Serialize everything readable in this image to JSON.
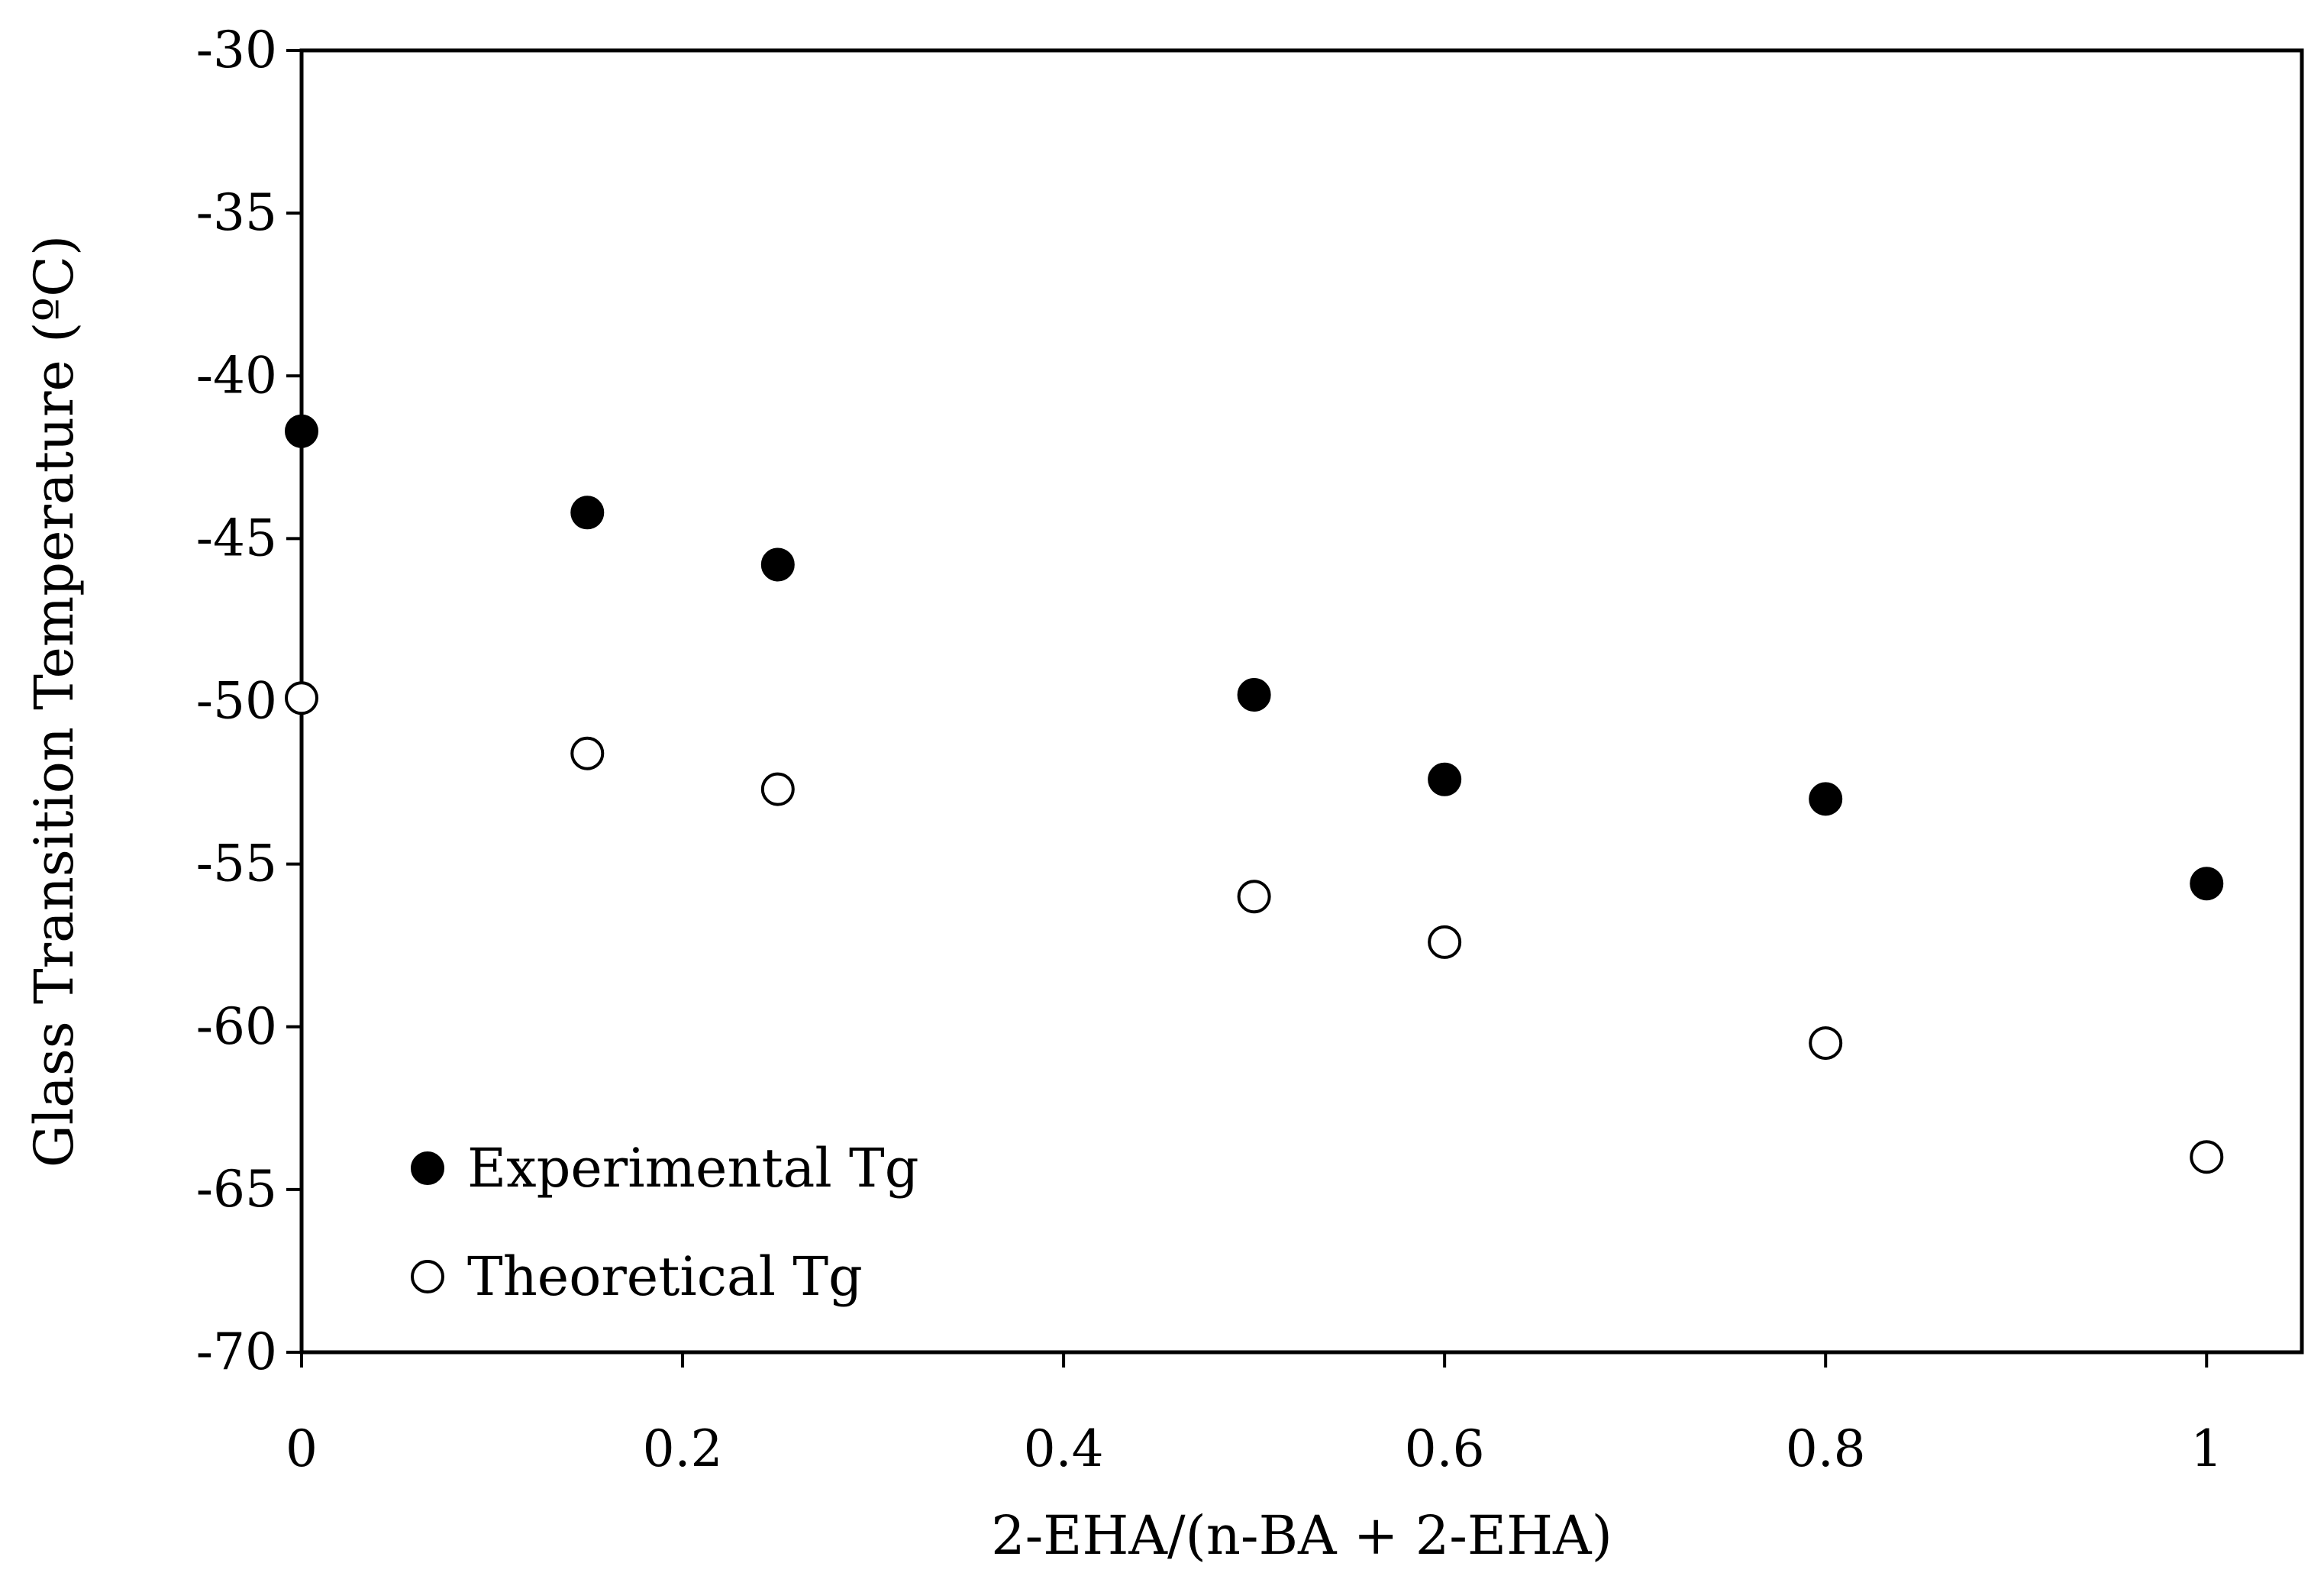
{
  "chart_data": {
    "type": "scatter",
    "title": "",
    "xlabel": "2-EHA/(n-BA + 2-EHA)",
    "ylabel": "Glass Transition Temperature (ºC)",
    "xlim": [
      0,
      1.05
    ],
    "ylim": [
      -70,
      -30
    ],
    "xticks": [
      0,
      0.2,
      0.4,
      0.6,
      0.8,
      1
    ],
    "xtick_labels": [
      "0",
      "0.2",
      "0.4",
      "0.6",
      "0.8",
      "1"
    ],
    "yticks": [
      -30,
      -35,
      -40,
      -45,
      -50,
      -55,
      -60,
      -65,
      -70
    ],
    "ytick_labels": [
      "-30",
      "-35",
      "-40",
      "-45",
      "-50",
      "-55",
      "-60",
      "-65",
      "-70"
    ],
    "grid": false,
    "legend_position": "bottom-left",
    "series": [
      {
        "name": "Experimental Tg",
        "marker": "filled-circle",
        "color": "#000000",
        "x": [
          0,
          0.15,
          0.25,
          0.5,
          0.6,
          0.8,
          1
        ],
        "y": [
          -41.7,
          -44.2,
          -45.8,
          -49.8,
          -52.4,
          -53.0,
          -55.6
        ]
      },
      {
        "name": "Theoretical Tg",
        "marker": "open-circle",
        "color": "#000000",
        "x": [
          0,
          0.15,
          0.25,
          0.5,
          0.6,
          0.8,
          1
        ],
        "y": [
          -49.9,
          -51.6,
          -52.7,
          -56.0,
          -57.4,
          -60.5,
          -64.0
        ]
      }
    ]
  }
}
